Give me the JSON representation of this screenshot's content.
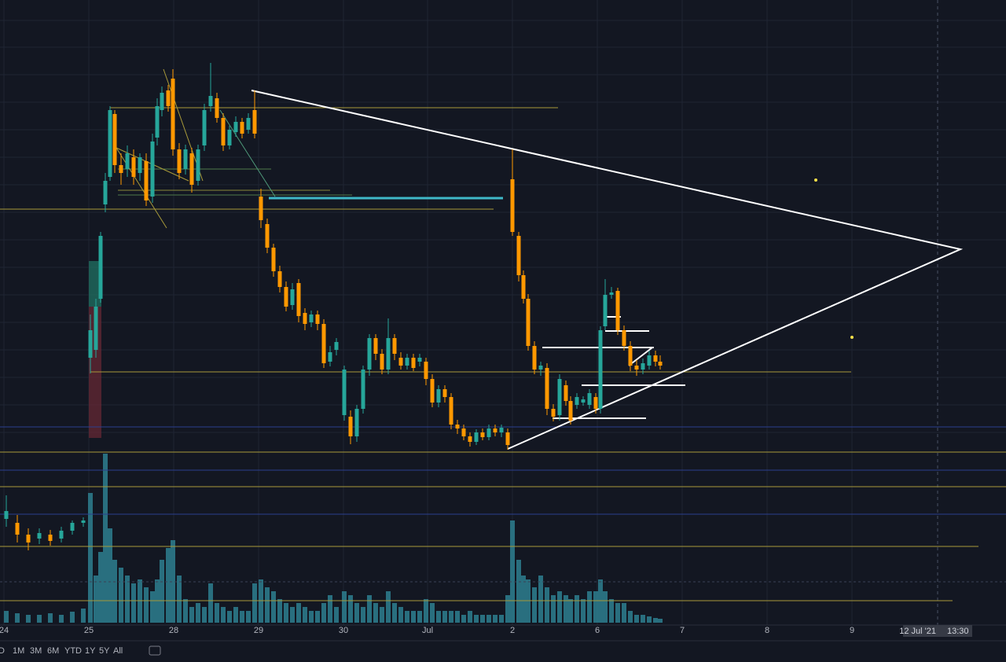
{
  "chart_data": {
    "type": "candlestick",
    "xlim": [
      0,
      1280
    ],
    "ylim": [
      0,
      840
    ],
    "xticks": [
      {
        "value": 5,
        "label": "24"
      },
      {
        "value": 113,
        "label": "25"
      },
      {
        "value": 221,
        "label": "28"
      },
      {
        "value": 329,
        "label": "29"
      },
      {
        "value": 437,
        "label": "30"
      },
      {
        "value": 544,
        "label": "Jul"
      },
      {
        "value": 652,
        "label": "2"
      },
      {
        "value": 760,
        "label": "6"
      },
      {
        "value": 868,
        "label": "7"
      },
      {
        "value": 976,
        "label": "8"
      },
      {
        "value": 1084,
        "label": "9"
      }
    ],
    "up_color": "#26a69a",
    "down_color": "#ff9800",
    "volume_color": "#2e7f8f",
    "candles": [
      [
        8,
        180,
        210,
        170,
        190
      ],
      [
        22,
        175,
        185,
        150,
        160
      ],
      [
        36,
        160,
        168,
        140,
        150
      ],
      [
        50,
        155,
        168,
        148,
        162
      ],
      [
        64,
        160,
        166,
        146,
        152
      ],
      [
        78,
        155,
        170,
        150,
        165
      ],
      [
        92,
        165,
        178,
        160,
        175
      ],
      [
        106,
        175,
        182,
        170,
        178
      ],
      [
        115,
        385,
        440,
        365,
        420
      ],
      [
        122,
        395,
        460,
        385,
        450
      ],
      [
        128,
        460,
        545,
        455,
        540
      ],
      [
        134,
        580,
        620,
        570,
        610
      ],
      [
        140,
        615,
        705,
        610,
        700
      ],
      [
        146,
        695,
        700,
        620,
        630
      ],
      [
        154,
        630,
        645,
        605,
        620
      ],
      [
        162,
        625,
        655,
        615,
        645
      ],
      [
        170,
        640,
        650,
        605,
        615
      ],
      [
        178,
        620,
        645,
        610,
        640
      ],
      [
        186,
        635,
        645,
        578,
        585
      ],
      [
        194,
        590,
        670,
        582,
        660
      ],
      [
        200,
        665,
        715,
        655,
        705
      ],
      [
        206,
        700,
        730,
        692,
        722
      ],
      [
        214,
        725,
        732,
        698,
        705
      ],
      [
        220,
        740,
        752,
        642,
        650
      ],
      [
        228,
        650,
        658,
        612,
        620
      ],
      [
        236,
        625,
        656,
        618,
        650
      ],
      [
        244,
        645,
        652,
        595,
        605
      ],
      [
        252,
        610,
        656,
        604,
        650
      ],
      [
        260,
        655,
        708,
        648,
        700
      ],
      [
        268,
        705,
        760,
        698,
        718
      ],
      [
        276,
        715,
        722,
        684,
        690
      ],
      [
        284,
        690,
        696,
        648,
        655
      ],
      [
        292,
        655,
        680,
        650,
        675
      ],
      [
        300,
        672,
        692,
        666,
        685
      ],
      [
        308,
        685,
        690,
        664,
        670
      ],
      [
        316,
        675,
        696,
        670,
        690
      ],
      [
        324,
        700,
        725,
        664,
        670
      ],
      [
        332,
        590,
        600,
        550,
        560
      ],
      [
        340,
        555,
        562,
        518,
        525
      ],
      [
        348,
        525,
        530,
        488,
        495
      ],
      [
        356,
        495,
        502,
        468,
        475
      ],
      [
        364,
        475,
        482,
        444,
        450
      ],
      [
        372,
        452,
        480,
        446,
        472
      ],
      [
        380,
        480,
        485,
        430,
        438
      ],
      [
        388,
        442,
        448,
        420,
        428
      ],
      [
        396,
        430,
        445,
        424,
        440
      ],
      [
        404,
        440,
        445,
        420,
        428
      ],
      [
        412,
        428,
        434,
        372,
        378
      ],
      [
        420,
        380,
        400,
        374,
        392
      ],
      [
        428,
        395,
        410,
        388,
        405
      ],
      [
        438,
        312,
        375,
        305,
        370
      ],
      [
        446,
        310,
        318,
        275,
        285
      ],
      [
        454,
        285,
        325,
        278,
        320
      ],
      [
        462,
        320,
        375,
        314,
        370
      ],
      [
        470,
        370,
        415,
        362,
        410
      ],
      [
        478,
        410,
        415,
        382,
        390
      ],
      [
        486,
        390,
        396,
        364,
        370
      ],
      [
        494,
        370,
        435,
        364,
        410
      ],
      [
        502,
        410,
        415,
        382,
        390
      ],
      [
        510,
        385,
        392,
        370,
        375
      ],
      [
        518,
        375,
        390,
        370,
        385
      ],
      [
        526,
        385,
        390,
        368,
        372
      ],
      [
        534,
        380,
        390,
        374,
        385
      ],
      [
        542,
        380,
        385,
        350,
        358
      ],
      [
        550,
        358,
        364,
        322,
        328
      ],
      [
        558,
        328,
        350,
        322,
        345
      ],
      [
        566,
        345,
        350,
        328,
        335
      ],
      [
        574,
        335,
        340,
        294,
        300
      ],
      [
        582,
        300,
        306,
        288,
        295
      ],
      [
        590,
        295,
        300,
        280,
        285
      ],
      [
        598,
        285,
        290,
        272,
        278
      ],
      [
        606,
        278,
        294,
        274,
        290
      ],
      [
        614,
        290,
        295,
        280,
        284
      ],
      [
        622,
        284,
        300,
        280,
        295
      ],
      [
        630,
        295,
        300,
        285,
        290
      ],
      [
        638,
        290,
        300,
        284,
        296
      ],
      [
        646,
        290,
        295,
        268,
        274
      ],
      [
        652,
        612,
        650,
        540,
        545
      ],
      [
        660,
        540,
        545,
        482,
        490
      ],
      [
        666,
        490,
        496,
        454,
        460
      ],
      [
        672,
        460,
        466,
        394,
        400
      ],
      [
        680,
        400,
        406,
        364,
        370
      ],
      [
        688,
        370,
        380,
        362,
        375
      ],
      [
        696,
        372,
        378,
        312,
        320
      ],
      [
        704,
        320,
        326,
        304,
        310
      ],
      [
        712,
        312,
        364,
        305,
        358
      ],
      [
        720,
        350,
        356,
        324,
        330
      ],
      [
        726,
        330,
        336,
        300,
        305
      ],
      [
        734,
        325,
        340,
        320,
        335
      ],
      [
        742,
        328,
        336,
        324,
        332
      ],
      [
        750,
        325,
        345,
        320,
        340
      ],
      [
        758,
        335,
        340,
        314,
        320
      ],
      [
        764,
        320,
        425,
        314,
        420
      ],
      [
        770,
        425,
        485,
        420,
        465
      ],
      [
        778,
        465,
        475,
        460,
        468
      ],
      [
        786,
        470,
        474,
        414,
        420
      ],
      [
        794,
        420,
        426,
        394,
        400
      ],
      [
        802,
        400,
        406,
        368,
        375
      ],
      [
        810,
        375,
        382,
        362,
        370
      ],
      [
        818,
        370,
        384,
        364,
        378
      ],
      [
        826,
        375,
        394,
        370,
        388
      ],
      [
        834,
        388,
        394,
        374,
        380
      ],
      [
        840,
        380,
        388,
        370,
        375
      ]
    ],
    "volume_ylim": [
      0,
      220
    ],
    "volume": [
      15,
      12,
      10,
      10,
      12,
      10,
      14,
      18,
      165,
      60,
      90,
      215,
      120,
      80,
      70,
      60,
      50,
      55,
      45,
      40,
      55,
      80,
      95,
      105,
      60,
      30,
      20,
      25,
      20,
      50,
      25,
      20,
      15,
      20,
      15,
      15,
      50,
      55,
      45,
      40,
      30,
      25,
      20,
      25,
      20,
      15,
      15,
      25,
      35,
      20,
      40,
      35,
      25,
      20,
      35,
      25,
      20,
      40,
      25,
      20,
      15,
      15,
      15,
      30,
      25,
      15,
      15,
      15,
      15,
      10,
      15,
      10,
      10,
      10,
      10,
      10,
      35,
      130,
      80,
      60,
      55,
      45,
      60,
      45,
      35,
      40,
      35,
      30,
      35,
      30,
      40,
      40,
      55,
      40,
      30,
      25,
      25,
      15,
      10,
      10,
      8,
      6,
      5
    ],
    "crosshair": {
      "x": 1193,
      "date": "12 Jul '21",
      "time": "13:30"
    },
    "toolbar": [
      "D",
      "1M",
      "3M",
      "6M",
      "YTD",
      "1Y",
      "5Y",
      "All"
    ]
  }
}
